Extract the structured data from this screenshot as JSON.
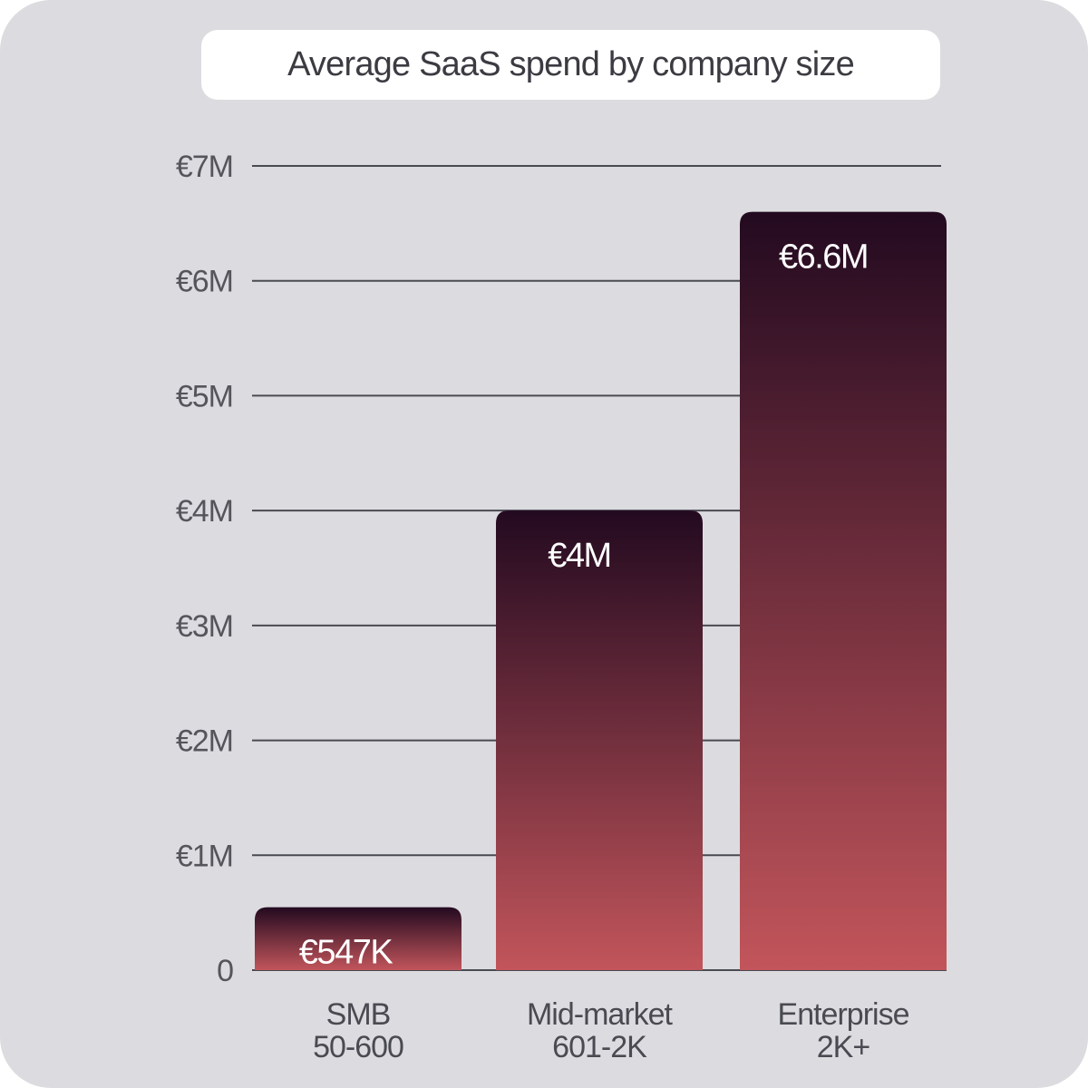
{
  "chart_data": {
    "type": "bar",
    "title": "Average SaaS spend by company size",
    "categories": [
      [
        "SMB",
        "50-600"
      ],
      [
        "Mid-market",
        "601-2K"
      ],
      [
        "Enterprise",
        "2K+"
      ]
    ],
    "values": [
      0.547,
      4.0,
      6.6
    ],
    "data_labels": [
      "€547K",
      "€4M",
      "€6.6M"
    ],
    "yticks": [
      0,
      1,
      2,
      3,
      4,
      5,
      6,
      7
    ],
    "ytick_labels": [
      "0",
      "€1M",
      "€2M",
      "€3M",
      "€4M",
      "€5M",
      "€6M",
      "€7M"
    ],
    "ylim": [
      0,
      7
    ],
    "grid": true,
    "colors": {
      "bar_top": "#230a20",
      "bar_bottom": "#c2555b",
      "gridline": "#4a4a52",
      "background": "#dcdce0"
    }
  }
}
